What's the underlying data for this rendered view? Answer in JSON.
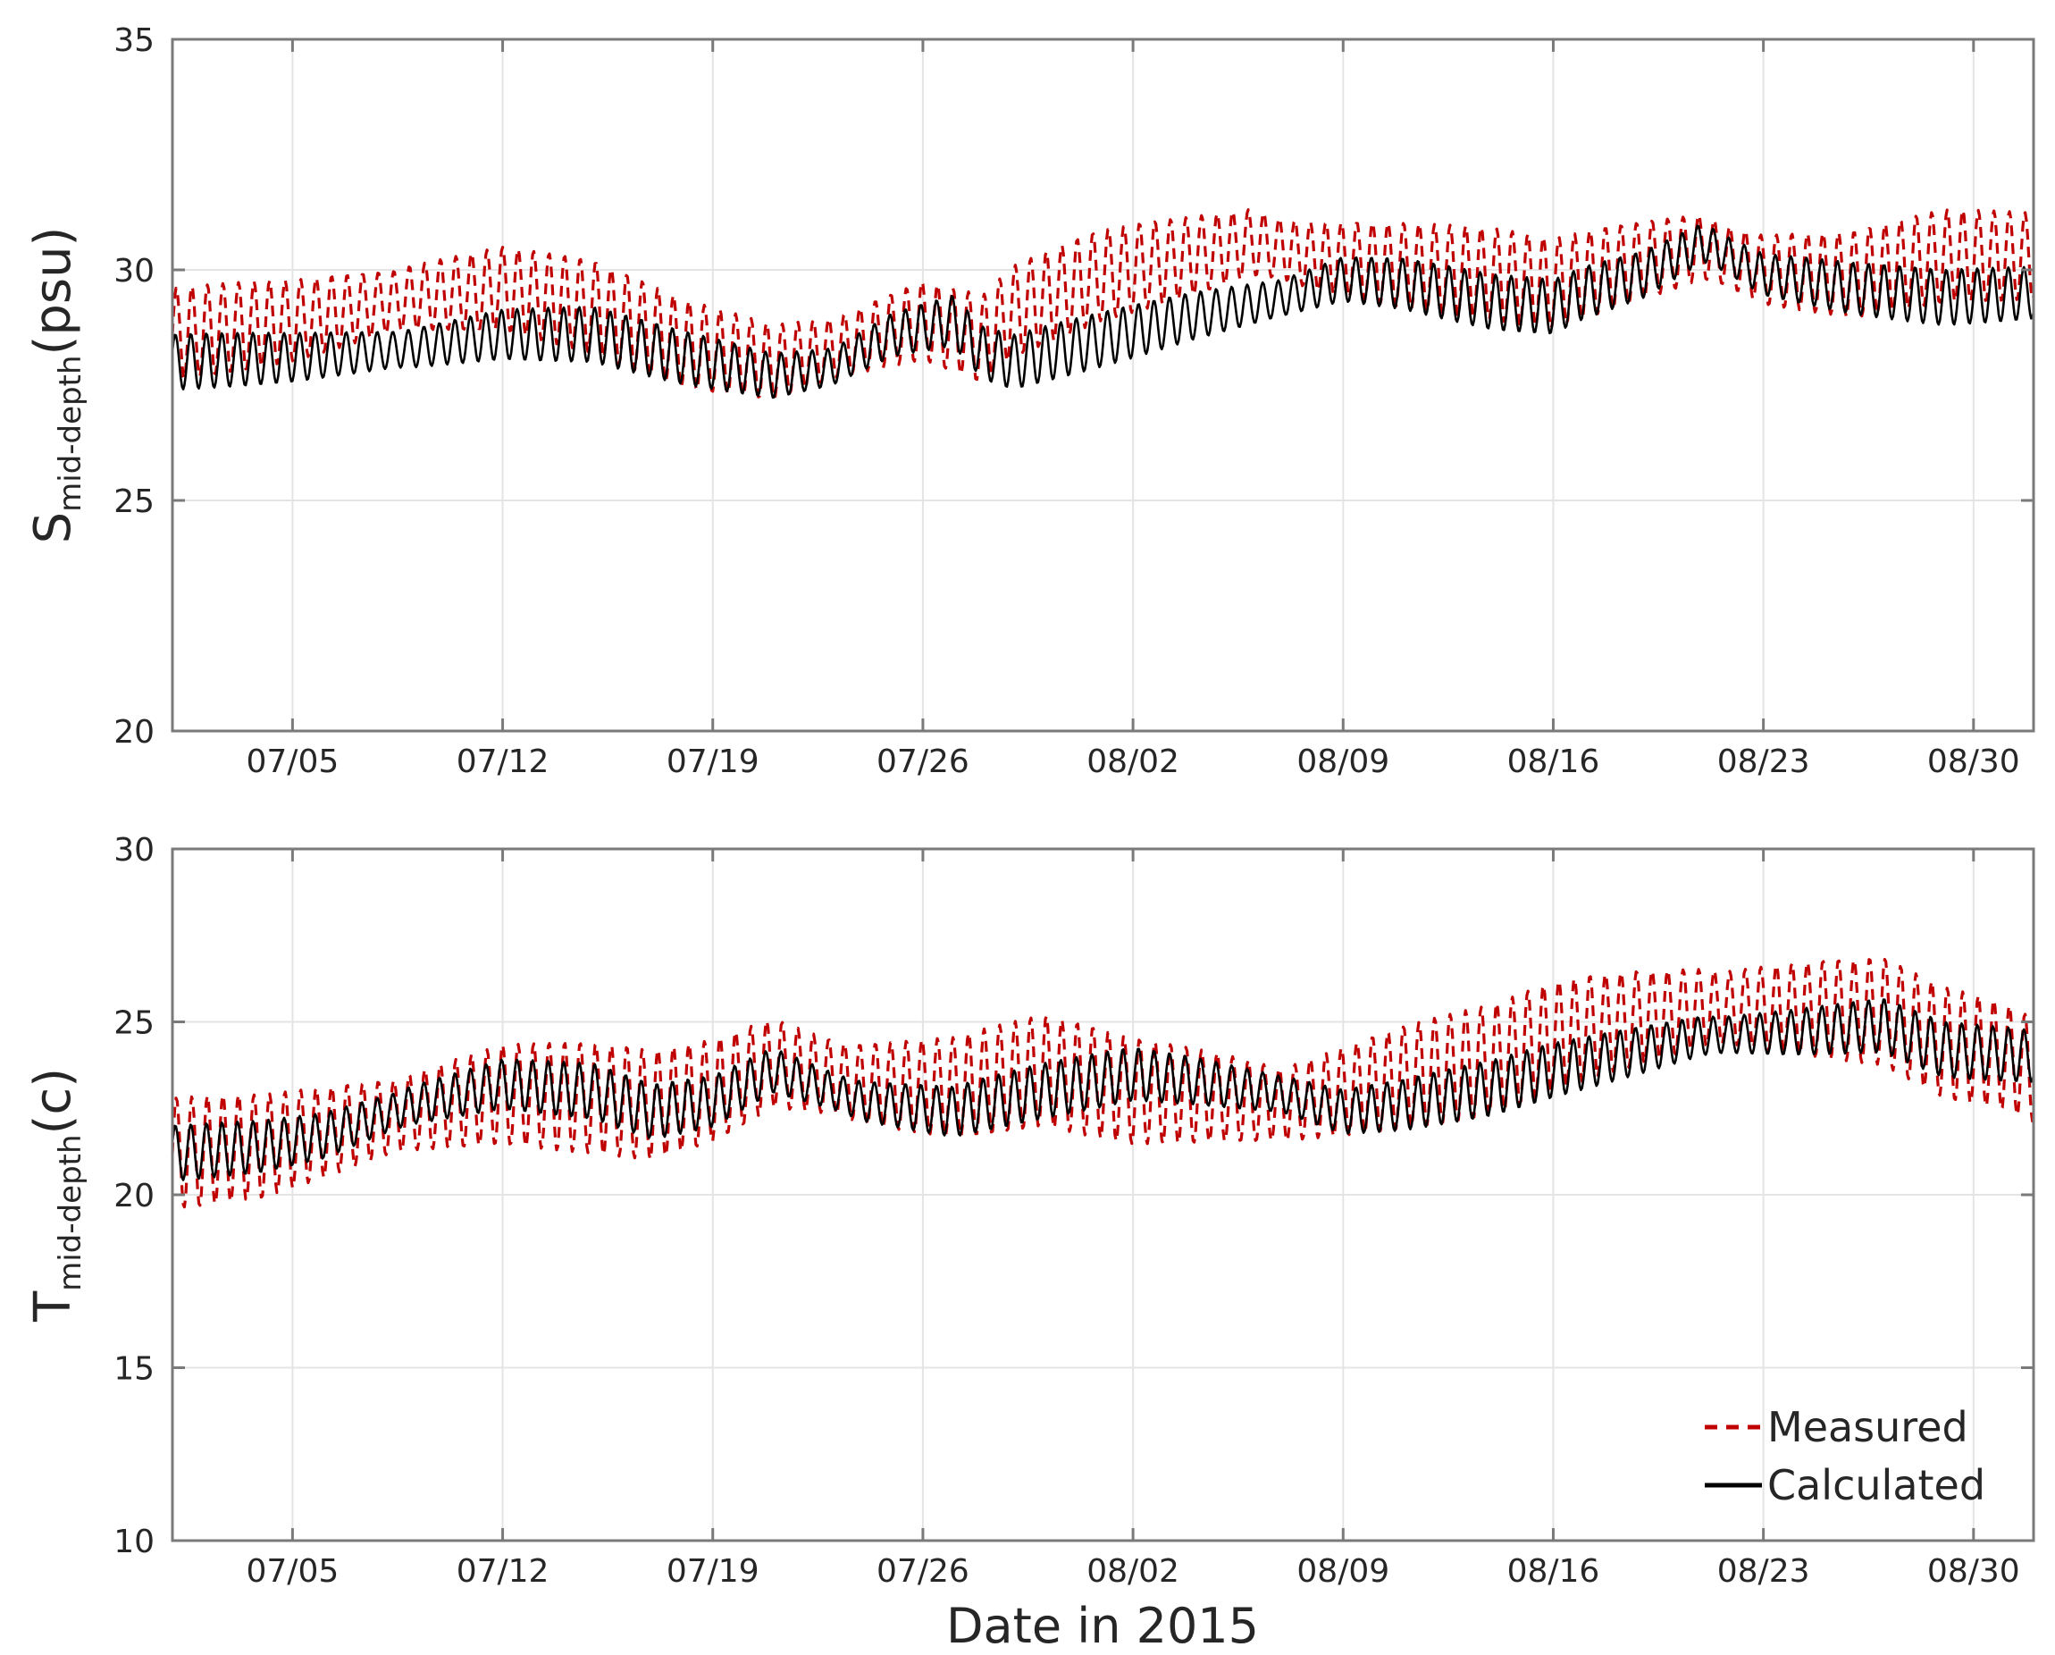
{
  "chart_data": [
    {
      "type": "line",
      "id": "salinity",
      "ylabel_main": "S",
      "ylabel_sub": "mid-depth",
      "ylabel_unit": "(psu)",
      "ylim": [
        20,
        35
      ],
      "yticks": [
        20,
        25,
        30,
        35
      ],
      "xlim_days": [
        0,
        62
      ],
      "xticks": [
        {
          "day": 4,
          "label": "07/05"
        },
        {
          "day": 11,
          "label": "07/12"
        },
        {
          "day": 18,
          "label": "07/19"
        },
        {
          "day": 25,
          "label": "07/26"
        },
        {
          "day": 32,
          "label": "08/02"
        },
        {
          "day": 39,
          "label": "08/09"
        },
        {
          "day": 46,
          "label": "08/16"
        },
        {
          "day": 53,
          "label": "08/23"
        },
        {
          "day": 60,
          "label": "08/30"
        }
      ],
      "grid": true,
      "series": [
        {
          "name": "Measured",
          "style": "dashed",
          "color": "#c00000",
          "amplitude": 1.0,
          "mean_knots": [
            [
              0,
              28.6
            ],
            [
              4,
              28.9
            ],
            [
              8,
              29.4
            ],
            [
              11,
              29.6
            ],
            [
              14,
              29.2
            ],
            [
              17,
              28.4
            ],
            [
              20,
              28.0
            ],
            [
              22,
              28.3
            ],
            [
              25,
              28.9
            ],
            [
              27,
              28.5
            ],
            [
              28,
              29.1
            ],
            [
              31,
              29.9
            ],
            [
              34,
              30.3
            ],
            [
              36,
              30.6
            ],
            [
              38,
              30.3
            ],
            [
              41,
              30.1
            ],
            [
              44,
              29.9
            ],
            [
              46,
              29.7
            ],
            [
              47,
              29.9
            ],
            [
              49,
              30.2
            ],
            [
              51,
              30.5
            ],
            [
              53,
              30.0
            ],
            [
              56,
              29.9
            ],
            [
              59,
              30.3
            ],
            [
              62,
              30.3
            ]
          ]
        },
        {
          "name": "Calculated",
          "style": "solid",
          "color": "#000000",
          "amplitude": 0.6,
          "mean_knots": [
            [
              0,
              28.0
            ],
            [
              4,
              28.1
            ],
            [
              8,
              28.3
            ],
            [
              11,
              28.6
            ],
            [
              14,
              28.6
            ],
            [
              17,
              28.1
            ],
            [
              20,
              27.7
            ],
            [
              22,
              27.9
            ],
            [
              24,
              28.6
            ],
            [
              26,
              28.9
            ],
            [
              27,
              28.2
            ],
            [
              28,
              28.0
            ],
            [
              31,
              28.5
            ],
            [
              34,
              29.0
            ],
            [
              37,
              29.4
            ],
            [
              39,
              29.8
            ],
            [
              41,
              29.7
            ],
            [
              44,
              29.3
            ],
            [
              46,
              29.2
            ],
            [
              47,
              29.5
            ],
            [
              49,
              29.9
            ],
            [
              51,
              30.6
            ],
            [
              53,
              29.9
            ],
            [
              56,
              29.6
            ],
            [
              59,
              29.4
            ],
            [
              62,
              29.5
            ]
          ]
        }
      ]
    },
    {
      "type": "line",
      "id": "temperature",
      "ylabel_main": "T",
      "ylabel_sub": "mid-depth",
      "ylabel_unit": "(c)",
      "xlabel": "Date in 2015",
      "ylim": [
        10,
        30
      ],
      "yticks": [
        10,
        15,
        20,
        25,
        30
      ],
      "xlim_days": [
        0,
        62
      ],
      "xticks": [
        {
          "day": 4,
          "label": "07/05"
        },
        {
          "day": 11,
          "label": "07/12"
        },
        {
          "day": 18,
          "label": "07/19"
        },
        {
          "day": 25,
          "label": "07/26"
        },
        {
          "day": 32,
          "label": "08/02"
        },
        {
          "day": 39,
          "label": "08/09"
        },
        {
          "day": 46,
          "label": "08/16"
        },
        {
          "day": 53,
          "label": "08/23"
        },
        {
          "day": 60,
          "label": "08/30"
        }
      ],
      "grid": true,
      "legend_position": "bottom-right",
      "series": [
        {
          "name": "Measured",
          "style": "dashed",
          "color": "#c00000",
          "amplitude": 1.6,
          "mean_knots": [
            [
              0,
              21.2
            ],
            [
              3,
              21.4
            ],
            [
              5,
              21.8
            ],
            [
              8,
              22.4
            ],
            [
              11,
              22.9
            ],
            [
              14,
              22.8
            ],
            [
              16,
              22.6
            ],
            [
              18,
              23.0
            ],
            [
              20,
              23.8
            ],
            [
              23,
              23.2
            ],
            [
              26,
              23.1
            ],
            [
              29,
              23.6
            ],
            [
              32,
              23.0
            ],
            [
              35,
              22.8
            ],
            [
              37,
              22.6
            ],
            [
              39,
              23.0
            ],
            [
              41,
              23.4
            ],
            [
              44,
              23.9
            ],
            [
              46,
              24.6
            ],
            [
              48,
              25.0
            ],
            [
              51,
              25.4
            ],
            [
              54,
              25.4
            ],
            [
              57,
              25.3
            ],
            [
              59,
              24.4
            ],
            [
              61,
              24.0
            ],
            [
              62,
              23.6
            ]
          ]
        },
        {
          "name": "Calculated",
          "style": "solid",
          "color": "#000000",
          "amplitude": 0.8,
          "mean_knots": [
            [
              0,
              21.2
            ],
            [
              3,
              21.4
            ],
            [
              5,
              21.7
            ],
            [
              8,
              22.6
            ],
            [
              11,
              23.2
            ],
            [
              14,
              23.0
            ],
            [
              16,
              22.4
            ],
            [
              18,
              22.7
            ],
            [
              20,
              23.6
            ],
            [
              23,
              22.7
            ],
            [
              26,
              22.4
            ],
            [
              29,
              23.0
            ],
            [
              32,
              23.5
            ],
            [
              34,
              23.3
            ],
            [
              37,
              22.9
            ],
            [
              39,
              22.4
            ],
            [
              41,
              22.6
            ],
            [
              44,
              23.1
            ],
            [
              46,
              23.6
            ],
            [
              48,
              24.0
            ],
            [
              51,
              24.6
            ],
            [
              54,
              24.7
            ],
            [
              57,
              24.9
            ],
            [
              59,
              24.2
            ],
            [
              62,
              24.0
            ]
          ]
        }
      ]
    }
  ],
  "legend": {
    "measured_label": "Measured",
    "calculated_label": "Calculated"
  }
}
